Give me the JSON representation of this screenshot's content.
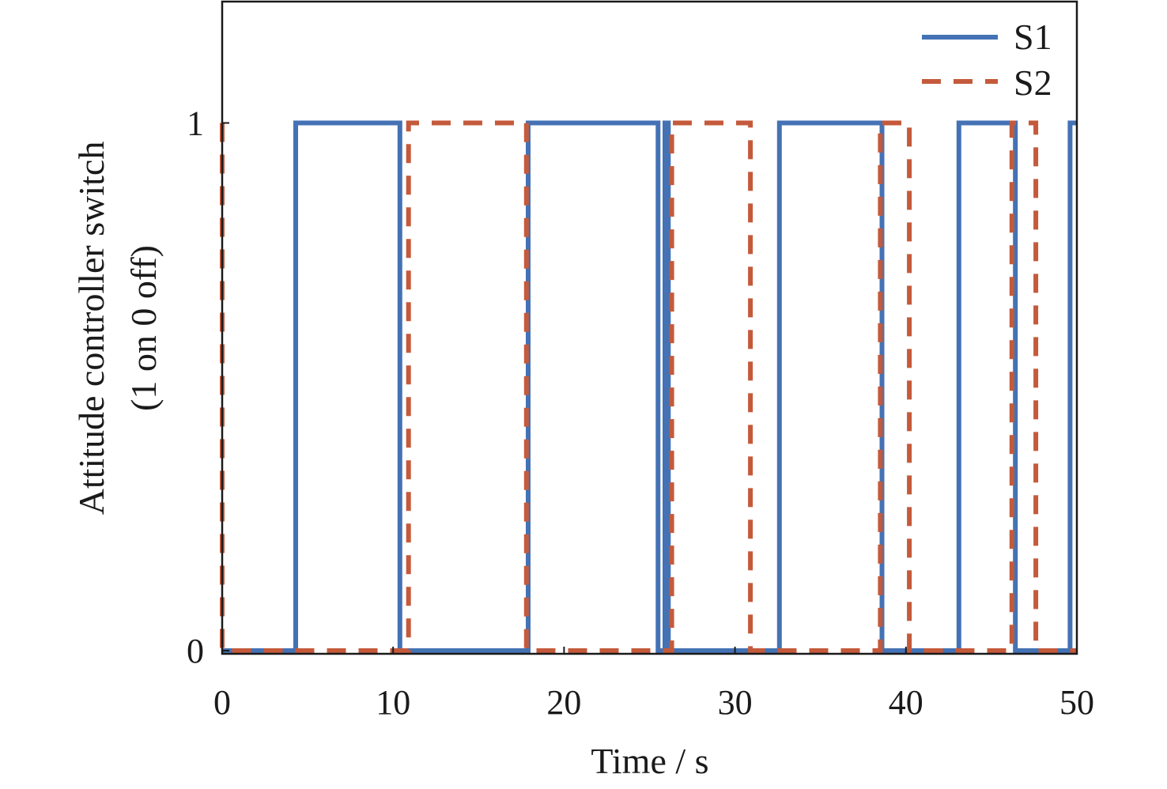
{
  "chart_data": {
    "type": "line",
    "xlabel": "Time / s",
    "ylabel": [
      "Attitude controller switch",
      "(1 on 0 off)"
    ],
    "xlim": [
      0,
      50
    ],
    "ylim": [
      -0.006,
      1.23
    ],
    "xticks": [
      0,
      10,
      20,
      30,
      40,
      50
    ],
    "yticks": [
      0,
      1
    ],
    "grid": false,
    "legend": "top-right",
    "series": [
      {
        "name": "S1",
        "color": "#4472b4",
        "style": "solid",
        "points": [
          [
            0,
            0
          ],
          [
            4.3,
            0
          ],
          [
            4.3,
            1
          ],
          [
            10.4,
            1
          ],
          [
            10.4,
            0
          ],
          [
            17.9,
            0
          ],
          [
            17.9,
            1
          ],
          [
            25.5,
            1
          ],
          [
            25.5,
            0
          ],
          [
            25.9,
            0
          ],
          [
            25.9,
            1
          ],
          [
            26.1,
            1
          ],
          [
            26.1,
            0
          ],
          [
            32.6,
            0
          ],
          [
            32.6,
            1
          ],
          [
            38.6,
            1
          ],
          [
            38.6,
            0
          ],
          [
            43.1,
            0
          ],
          [
            43.1,
            1
          ],
          [
            46.4,
            1
          ],
          [
            46.4,
            0
          ],
          [
            49.6,
            0
          ],
          [
            49.6,
            1
          ],
          [
            50,
            1
          ]
        ]
      },
      {
        "name": "S2",
        "color": "#c45a3b",
        "style": "dashed",
        "points": [
          [
            0,
            1
          ],
          [
            0,
            0
          ],
          [
            10.9,
            0
          ],
          [
            10.9,
            1
          ],
          [
            17.8,
            1
          ],
          [
            17.8,
            0
          ],
          [
            26.3,
            0
          ],
          [
            26.3,
            1
          ],
          [
            30.9,
            1
          ],
          [
            30.9,
            0
          ],
          [
            38.5,
            0
          ],
          [
            38.5,
            1
          ],
          [
            40.2,
            1
          ],
          [
            40.2,
            0
          ],
          [
            46.2,
            0
          ],
          [
            46.2,
            1
          ],
          [
            47.6,
            1
          ],
          [
            47.6,
            0
          ],
          [
            50,
            0
          ]
        ]
      }
    ]
  }
}
